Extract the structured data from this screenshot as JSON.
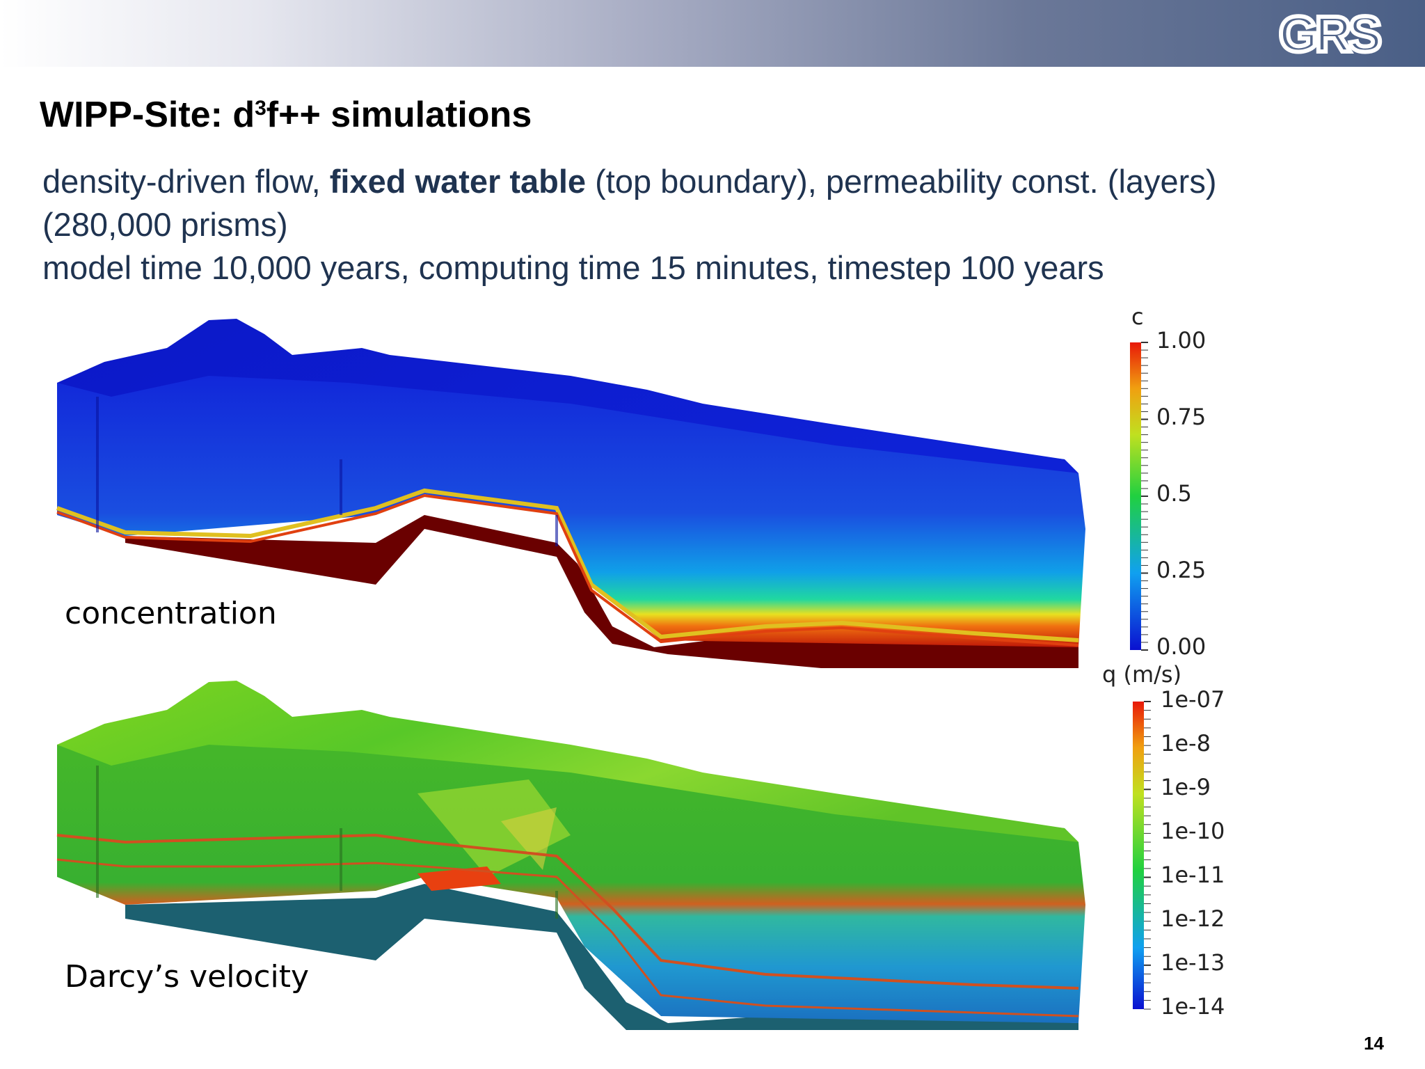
{
  "header": {
    "logo_text": "GRS"
  },
  "slide": {
    "title_prefix": "WIPP-Site: d",
    "title_sup": "3",
    "title_suffix": "f++ simulations",
    "line1_a": "density-driven flow, ",
    "line1_bold": "fixed water table",
    "line1_b": " (top boundary), permeability const. (layers)",
    "line2": "(280,000 prisms)",
    "line3": "model time 10,000 years, computing time 15 minutes, timestep 100 years",
    "page_number": "14"
  },
  "panels": {
    "concentration": {
      "label": "concentration",
      "colorbar_title": "c",
      "ticks": [
        "1.00",
        "0.75",
        "0.5",
        "0.25",
        "0.00"
      ]
    },
    "velocity": {
      "label": "Darcy’s velocity",
      "colorbar_title": "q (m/s)",
      "ticks": [
        "1e-07",
        "1e-8",
        "1e-9",
        "1e-10",
        "1e-11",
        "1e-12",
        "1e-13",
        "1e-14"
      ]
    }
  },
  "colors": {
    "title_text": "#000000",
    "body_text": "#1f3350",
    "low": "#0a1ad8",
    "high": "#e02010"
  }
}
